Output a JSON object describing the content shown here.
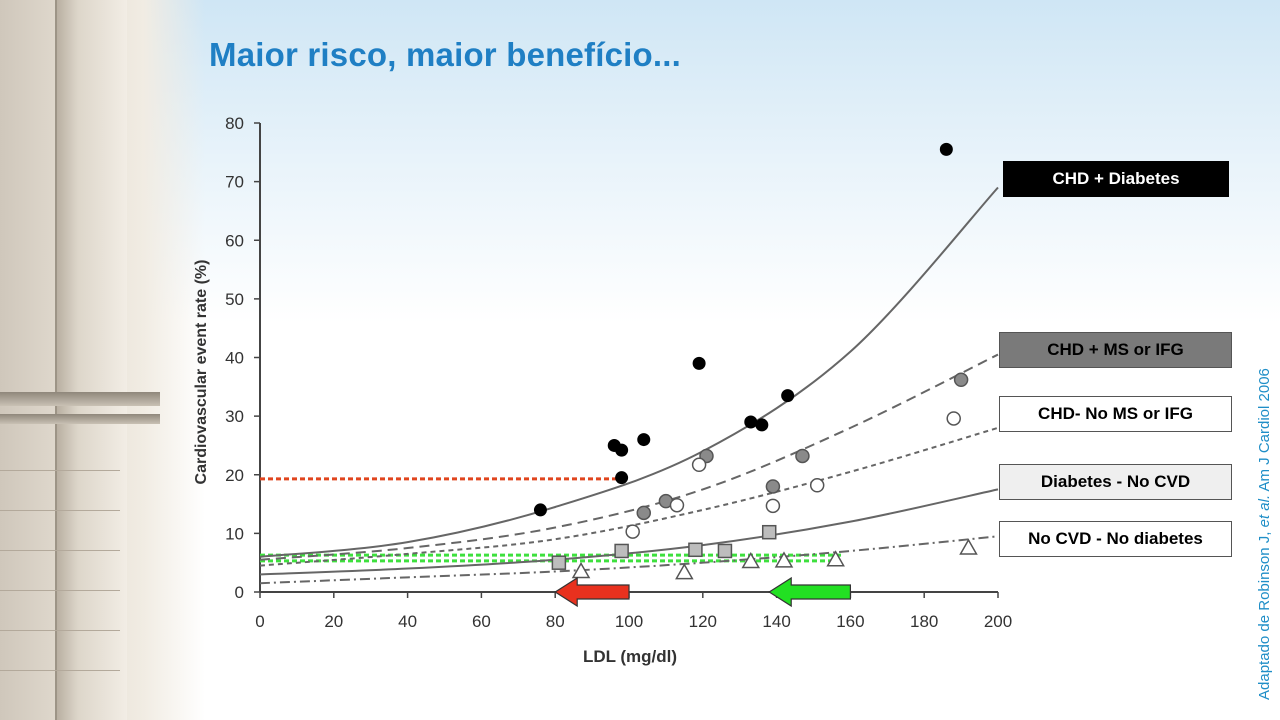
{
  "slide": {
    "title": "Maior risco, maior benefício...",
    "citation_pre": "Adaptado de Robinson J, ",
    "citation_em": "et al.",
    "citation_post": "  Am J Cardiol 2006"
  },
  "colors": {
    "title": "#1f7fc4",
    "citation": "#1f8ec7",
    "red_arrow": "#e8311e",
    "green_arrow": "#22e022",
    "red_dash": "#e0451e",
    "green_dash": "#3ee03e"
  },
  "chart_data": {
    "type": "scatter",
    "xlabel": "LDL (mg/dl)",
    "ylabel": "Cardiovascular event rate (%)",
    "xlim": [
      0,
      200
    ],
    "ylim": [
      0,
      80
    ],
    "xticks": [
      0,
      20,
      40,
      60,
      80,
      100,
      120,
      140,
      160,
      180,
      200
    ],
    "yticks": [
      0,
      10,
      20,
      30,
      40,
      50,
      60,
      70,
      80
    ],
    "legend_placement": "right",
    "series": [
      {
        "name": "CHD + Diabetes",
        "marker": "filled-black-circle",
        "legend_style": "black",
        "line_style": "solid",
        "curve": [
          [
            0,
            6
          ],
          [
            40,
            8.5
          ],
          [
            80,
            14.5
          ],
          [
            120,
            24
          ],
          [
            160,
            41
          ],
          [
            200,
            69
          ]
        ],
        "points": [
          [
            76,
            14
          ],
          [
            96,
            25
          ],
          [
            98,
            24.2
          ],
          [
            98,
            19.5
          ],
          [
            104,
            26
          ],
          [
            119,
            39
          ],
          [
            133,
            29
          ],
          [
            136,
            28.5
          ],
          [
            143,
            33.5
          ],
          [
            186,
            75.5
          ]
        ]
      },
      {
        "name": "CHD + MS or IFG",
        "marker": "gray-circle",
        "legend_style": "gray",
        "line_style": "dashed",
        "curve": [
          [
            0,
            5.5
          ],
          [
            40,
            7.5
          ],
          [
            80,
            11
          ],
          [
            120,
            17.5
          ],
          [
            160,
            28
          ],
          [
            200,
            40.5
          ]
        ],
        "points": [
          [
            104,
            13.5
          ],
          [
            110,
            15.5
          ],
          [
            121,
            23.2
          ],
          [
            139,
            18
          ],
          [
            147,
            23.2
          ],
          [
            190,
            36.2
          ]
        ]
      },
      {
        "name": "CHD- No MS or IFG",
        "marker": "open-circle",
        "legend_style": "white",
        "line_style": "dotted",
        "curve": [
          [
            0,
            4.5
          ],
          [
            40,
            6.5
          ],
          [
            80,
            9
          ],
          [
            120,
            14
          ],
          [
            160,
            20.5
          ],
          [
            200,
            28
          ]
        ],
        "points": [
          [
            101,
            10.3
          ],
          [
            113,
            14.8
          ],
          [
            119,
            21.7
          ],
          [
            139,
            14.7
          ],
          [
            151,
            18.2
          ],
          [
            188,
            29.6
          ]
        ]
      },
      {
        "name": "Diabetes - No CVD",
        "marker": "open-square",
        "legend_style": "light",
        "line_style": "solid",
        "curve": [
          [
            0,
            3
          ],
          [
            40,
            4
          ],
          [
            80,
            5.5
          ],
          [
            120,
            8
          ],
          [
            160,
            12
          ],
          [
            200,
            17.5
          ]
        ],
        "points": [
          [
            81,
            5
          ],
          [
            98,
            7
          ],
          [
            118,
            7.2
          ],
          [
            126,
            7
          ],
          [
            138,
            10.2
          ]
        ]
      },
      {
        "name": "No CVD - No diabetes",
        "marker": "open-triangle",
        "legend_style": "white",
        "line_style": "dash-dot",
        "curve": [
          [
            0,
            1.5
          ],
          [
            40,
            2.5
          ],
          [
            80,
            3.5
          ],
          [
            120,
            5
          ],
          [
            160,
            7
          ],
          [
            200,
            9.5
          ]
        ],
        "points": [
          [
            87,
            3.5
          ],
          [
            115,
            3.3
          ],
          [
            133,
            5.2
          ],
          [
            142,
            5.3
          ],
          [
            156,
            5.5
          ],
          [
            192,
            7.5
          ]
        ]
      }
    ],
    "reference_lines": [
      {
        "color": "red",
        "style": "dotted",
        "points": [
          [
            0,
            19.3
          ],
          [
            98,
            19.3
          ]
        ]
      },
      {
        "color": "green",
        "style": "dotted",
        "points": [
          [
            0,
            6.3
          ],
          [
            158,
            6.3
          ]
        ]
      },
      {
        "color": "green",
        "style": "dotted",
        "points": [
          [
            0,
            5.3
          ],
          [
            156,
            5.3
          ]
        ]
      }
    ],
    "arrows": [
      {
        "color": "red",
        "direction": "left",
        "from_x": 100,
        "to_x": 80,
        "y": 0
      },
      {
        "color": "green",
        "direction": "left",
        "from_x": 160,
        "to_x": 138,
        "y": 0
      }
    ]
  }
}
